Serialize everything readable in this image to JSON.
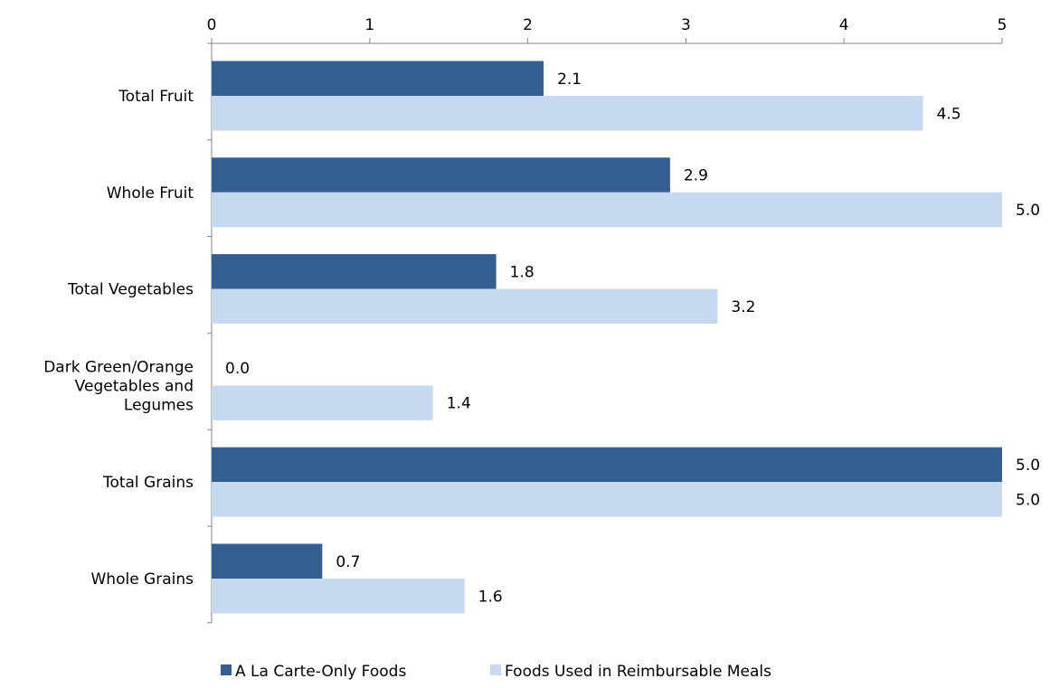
{
  "chart_data": {
    "type": "bar",
    "orientation": "horizontal",
    "title": "",
    "xlabel": "",
    "ylabel": "",
    "xlim": [
      0,
      5
    ],
    "x_ticks": [
      "0",
      "1",
      "2",
      "3",
      "4",
      "5"
    ],
    "x_axis_position": "top",
    "grid": false,
    "legend_position": "bottom",
    "categories": [
      [
        "Total Fruit"
      ],
      [
        "Whole Fruit"
      ],
      [
        "Total Vegetables"
      ],
      [
        "Dark Green/Orange",
        "Vegetables and",
        "Legumes"
      ],
      [
        "Total Grains"
      ],
      [
        "Whole Grains"
      ]
    ],
    "series": [
      {
        "name": "A La Carte-Only Foods",
        "color": "#355F91",
        "values": [
          2.1,
          2.9,
          1.8,
          0.0,
          5.0,
          0.7
        ],
        "labels": [
          "2.1",
          "2.9",
          "1.8",
          "0.0",
          "5.0",
          "0.7"
        ]
      },
      {
        "name": "Foods Used in Reimbursable Meals",
        "color": "#C6D9F1",
        "values": [
          4.5,
          5.0,
          3.2,
          1.4,
          5.0,
          1.6
        ],
        "labels": [
          "4.5",
          "5.0",
          "3.2",
          "1.4",
          "5.0",
          "1.6"
        ]
      }
    ]
  }
}
